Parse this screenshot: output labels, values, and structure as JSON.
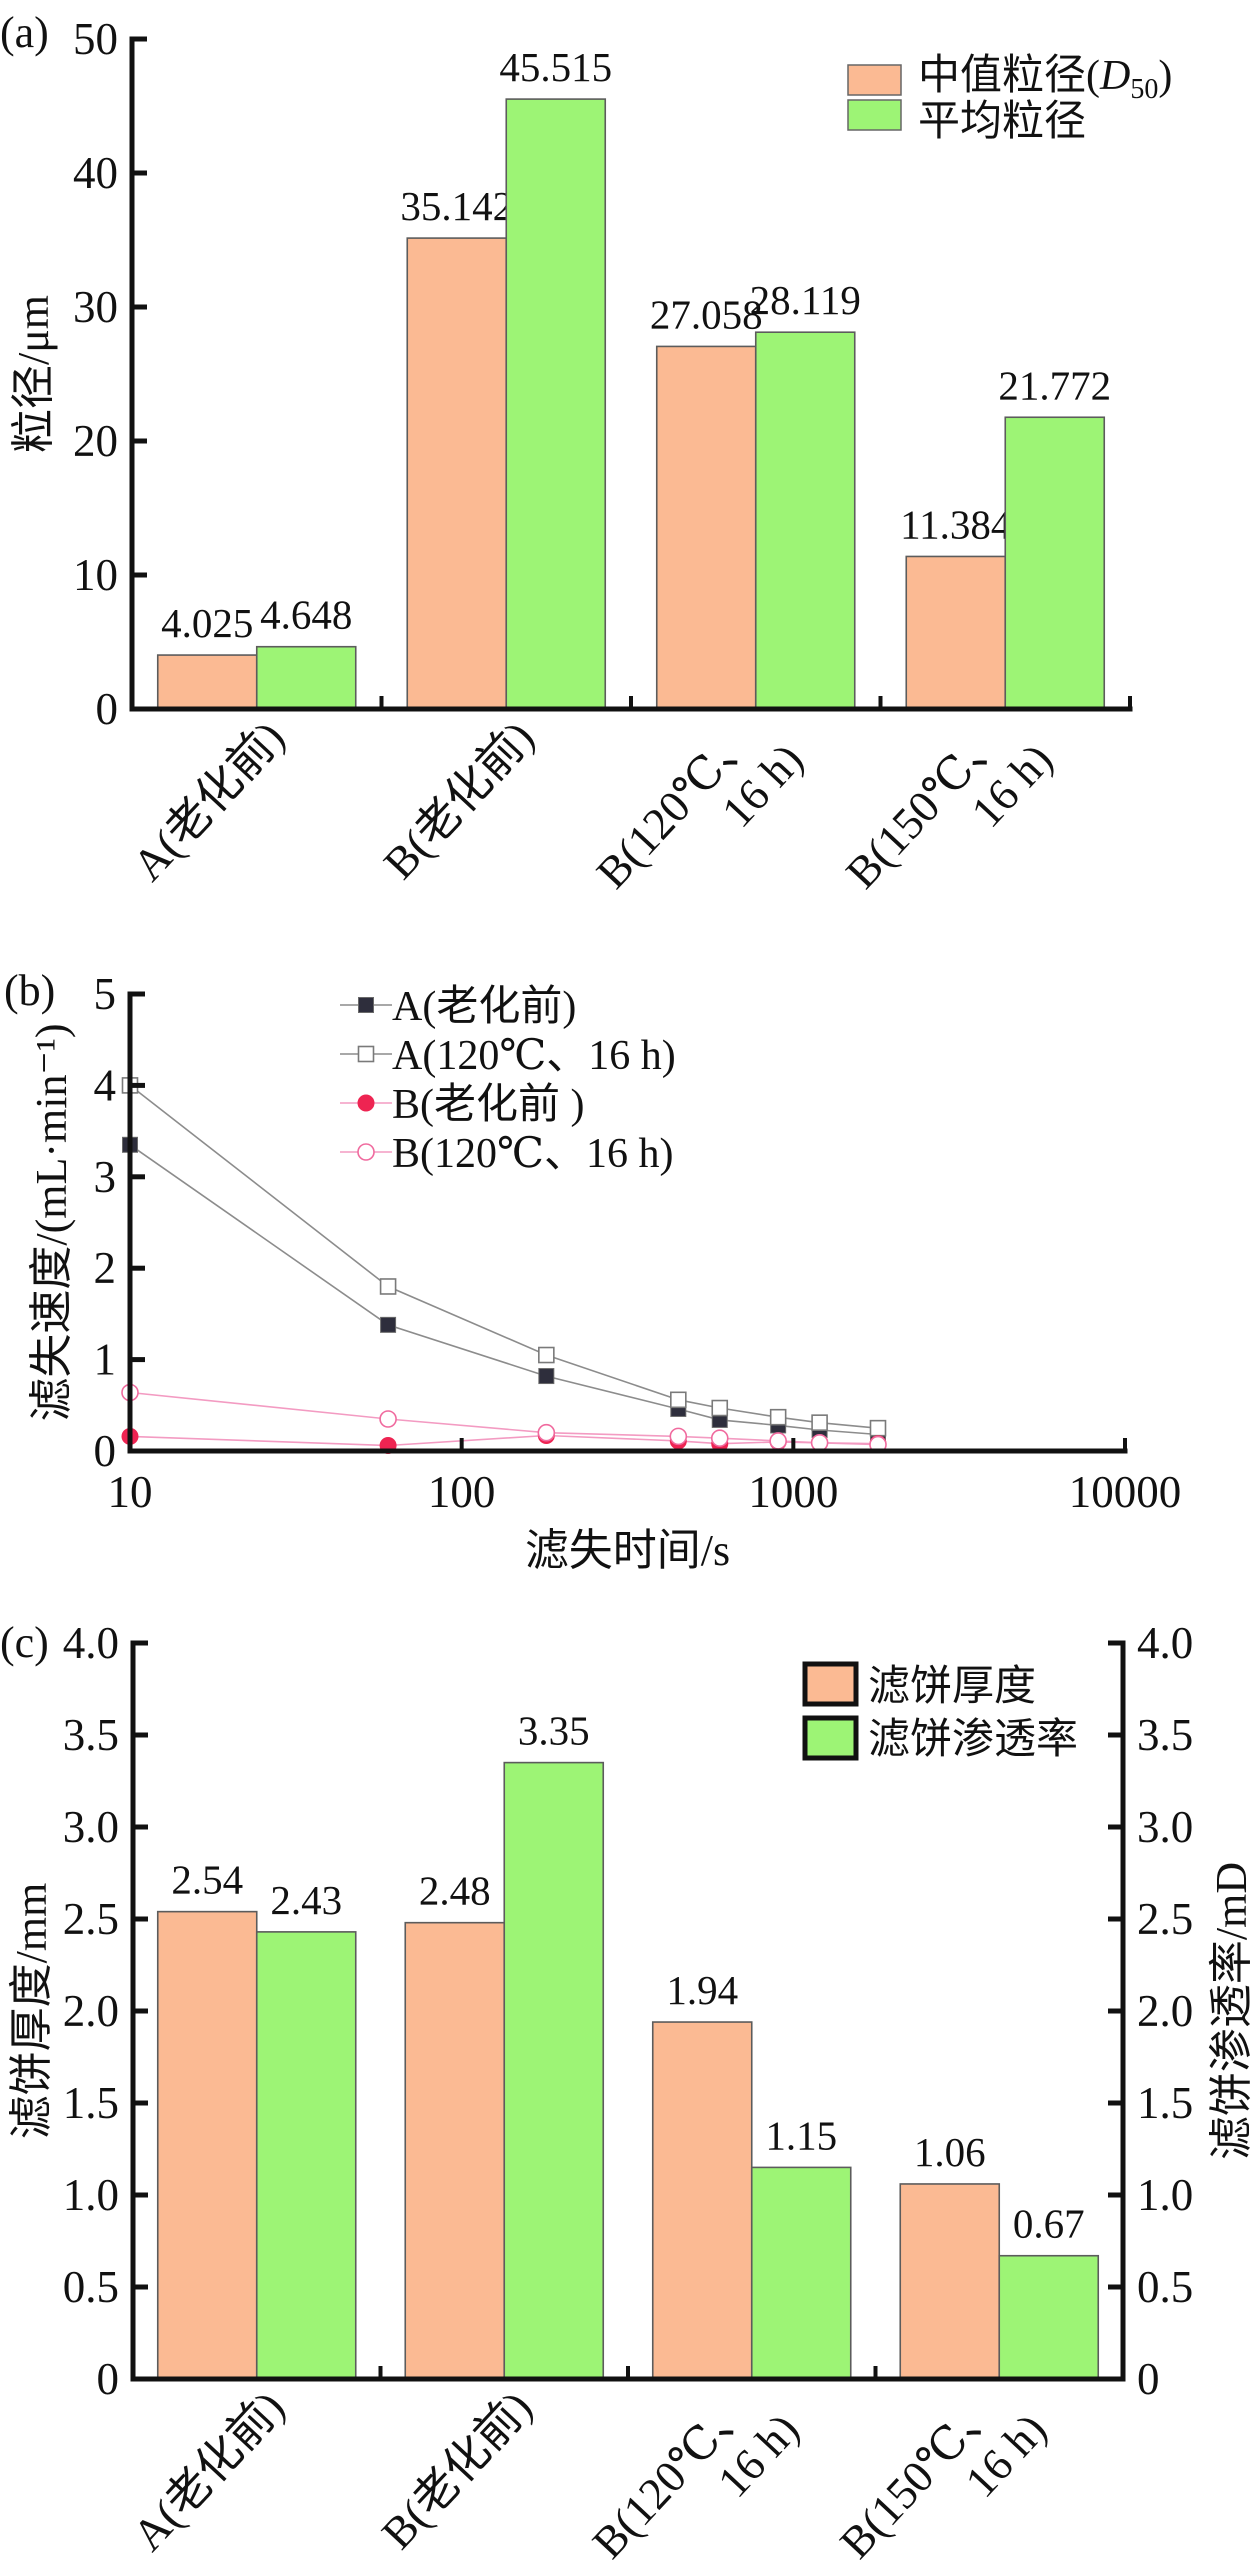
{
  "chart_data": [
    {
      "panel_label": "(a)",
      "type": "bar",
      "categories": [
        [
          "A(老化前)"
        ],
        [
          "B(老化前)"
        ],
        [
          "B(120℃、",
          "16 h)"
        ],
        [
          "B(150℃、",
          "16 h)"
        ]
      ],
      "series": [
        {
          "name": {
            "prefix": "中值粒径(",
            "italic": "D",
            "sub": "50",
            "suffix": ")"
          },
          "values": [
            4.025,
            35.142,
            27.058,
            11.384
          ],
          "labels": [
            "4.025",
            "35.142",
            "27.058",
            "11.384"
          ],
          "color": "#FBBA93"
        },
        {
          "name": "平均粒径",
          "values": [
            4.648,
            45.515,
            28.119,
            21.772
          ],
          "labels": [
            "4.648",
            "45.515",
            "28.119",
            "21.772"
          ],
          "color": "#9DF475"
        }
      ],
      "xlabel": "",
      "ylabel": "粒径/μm",
      "ylim": [
        0,
        50
      ],
      "yticks": [
        0,
        10,
        20,
        30,
        40,
        50
      ],
      "ytick_labels": [
        "0",
        "10",
        "20",
        "30",
        "40",
        "50"
      ],
      "grid": false,
      "legend_position": "top-right"
    },
    {
      "panel_label": "(b)",
      "type": "line",
      "x": [
        10,
        60,
        180,
        450,
        600,
        900,
        1200,
        1800
      ],
      "xscale": "log",
      "xlim": [
        10,
        10000
      ],
      "xticks": [
        10,
        100,
        1000,
        10000
      ],
      "xtick_labels": [
        "10",
        "100",
        "1000",
        "10000"
      ],
      "ylim": [
        0,
        5
      ],
      "yticks": [
        0,
        1,
        2,
        3,
        4,
        5
      ],
      "ytick_labels": [
        "0",
        "1",
        "2",
        "3",
        "4",
        "5"
      ],
      "xlabel": "滤失时间/s",
      "ylabel": "滤失速度/(mL·min⁻¹)",
      "grid": false,
      "legend_position": "top-left",
      "series": [
        {
          "name": "A(老化前)",
          "marker": "filled-square",
          "marker_color": "#2E2E3C",
          "line_color": "#8C8C8C",
          "values": [
            3.35,
            1.38,
            0.82,
            0.46,
            0.34,
            0.28,
            0.23,
            0.18
          ]
        },
        {
          "name": "A(120℃、16 h)",
          "marker": "open-square",
          "marker_color": "#7A7A7A",
          "line_color": "#8C8C8C",
          "values": [
            4.0,
            1.8,
            1.05,
            0.56,
            0.47,
            0.37,
            0.31,
            0.25
          ]
        },
        {
          "name": "B(老化前 )",
          "marker": "filled-circle",
          "marker_color": "#EE2452",
          "line_color": "#F39BC2",
          "values": [
            0.16,
            0.06,
            0.17,
            0.11,
            0.08,
            0.1,
            0.09,
            0.08
          ]
        },
        {
          "name": "B(120℃、16 h)",
          "marker": "open-circle",
          "marker_color": "#F06A9E",
          "line_color": "#F39BC2",
          "values": [
            0.64,
            0.35,
            0.2,
            0.16,
            0.14,
            0.11,
            0.09,
            0.07
          ]
        }
      ]
    },
    {
      "panel_label": "(c)",
      "type": "bar",
      "categories": [
        [
          "A(老化前)"
        ],
        [
          "B(老化前)"
        ],
        [
          "B(120℃、",
          "16 h)"
        ],
        [
          "B(150℃、",
          "16 h)"
        ]
      ],
      "series": [
        {
          "name": "滤饼厚度",
          "axis": "left",
          "values": [
            2.54,
            2.48,
            1.94,
            1.06
          ],
          "labels": [
            "2.54",
            "2.48",
            "1.94",
            "1.06"
          ],
          "color": "#FBBA93"
        },
        {
          "name": "滤饼渗透率",
          "axis": "right",
          "values": [
            2.43,
            3.35,
            1.15,
            0.67
          ],
          "labels": [
            "2.43",
            "3.35",
            "1.15",
            "0.67"
          ],
          "color": "#9DF475"
        }
      ],
      "xlabel": "",
      "ylabel": "滤饼厚度/mm",
      "ylabel_right": "滤饼渗透率/mD",
      "ylim": [
        0,
        4.0
      ],
      "yticks": [
        0,
        0.5,
        1.0,
        1.5,
        2.0,
        2.5,
        3.0,
        3.5,
        4.0
      ],
      "ytick_labels": [
        "0",
        "0.5",
        "1.0",
        "1.5",
        "2.0",
        "2.5",
        "3.0",
        "3.5",
        "4.0"
      ],
      "ylim_right": [
        0,
        4.0
      ],
      "yticks_right": [
        0,
        0.5,
        1.0,
        1.5,
        2.0,
        2.5,
        3.0,
        3.5,
        4.0
      ],
      "ytick_labels_right": [
        "0",
        "0.5",
        "1.0",
        "1.5",
        "2.0",
        "2.5",
        "3.0",
        "3.5",
        "4.0"
      ],
      "grid": false,
      "legend_position": "top-right"
    }
  ],
  "colors": {
    "axis": "#111111",
    "bar_outline": "#5C5C5C"
  }
}
